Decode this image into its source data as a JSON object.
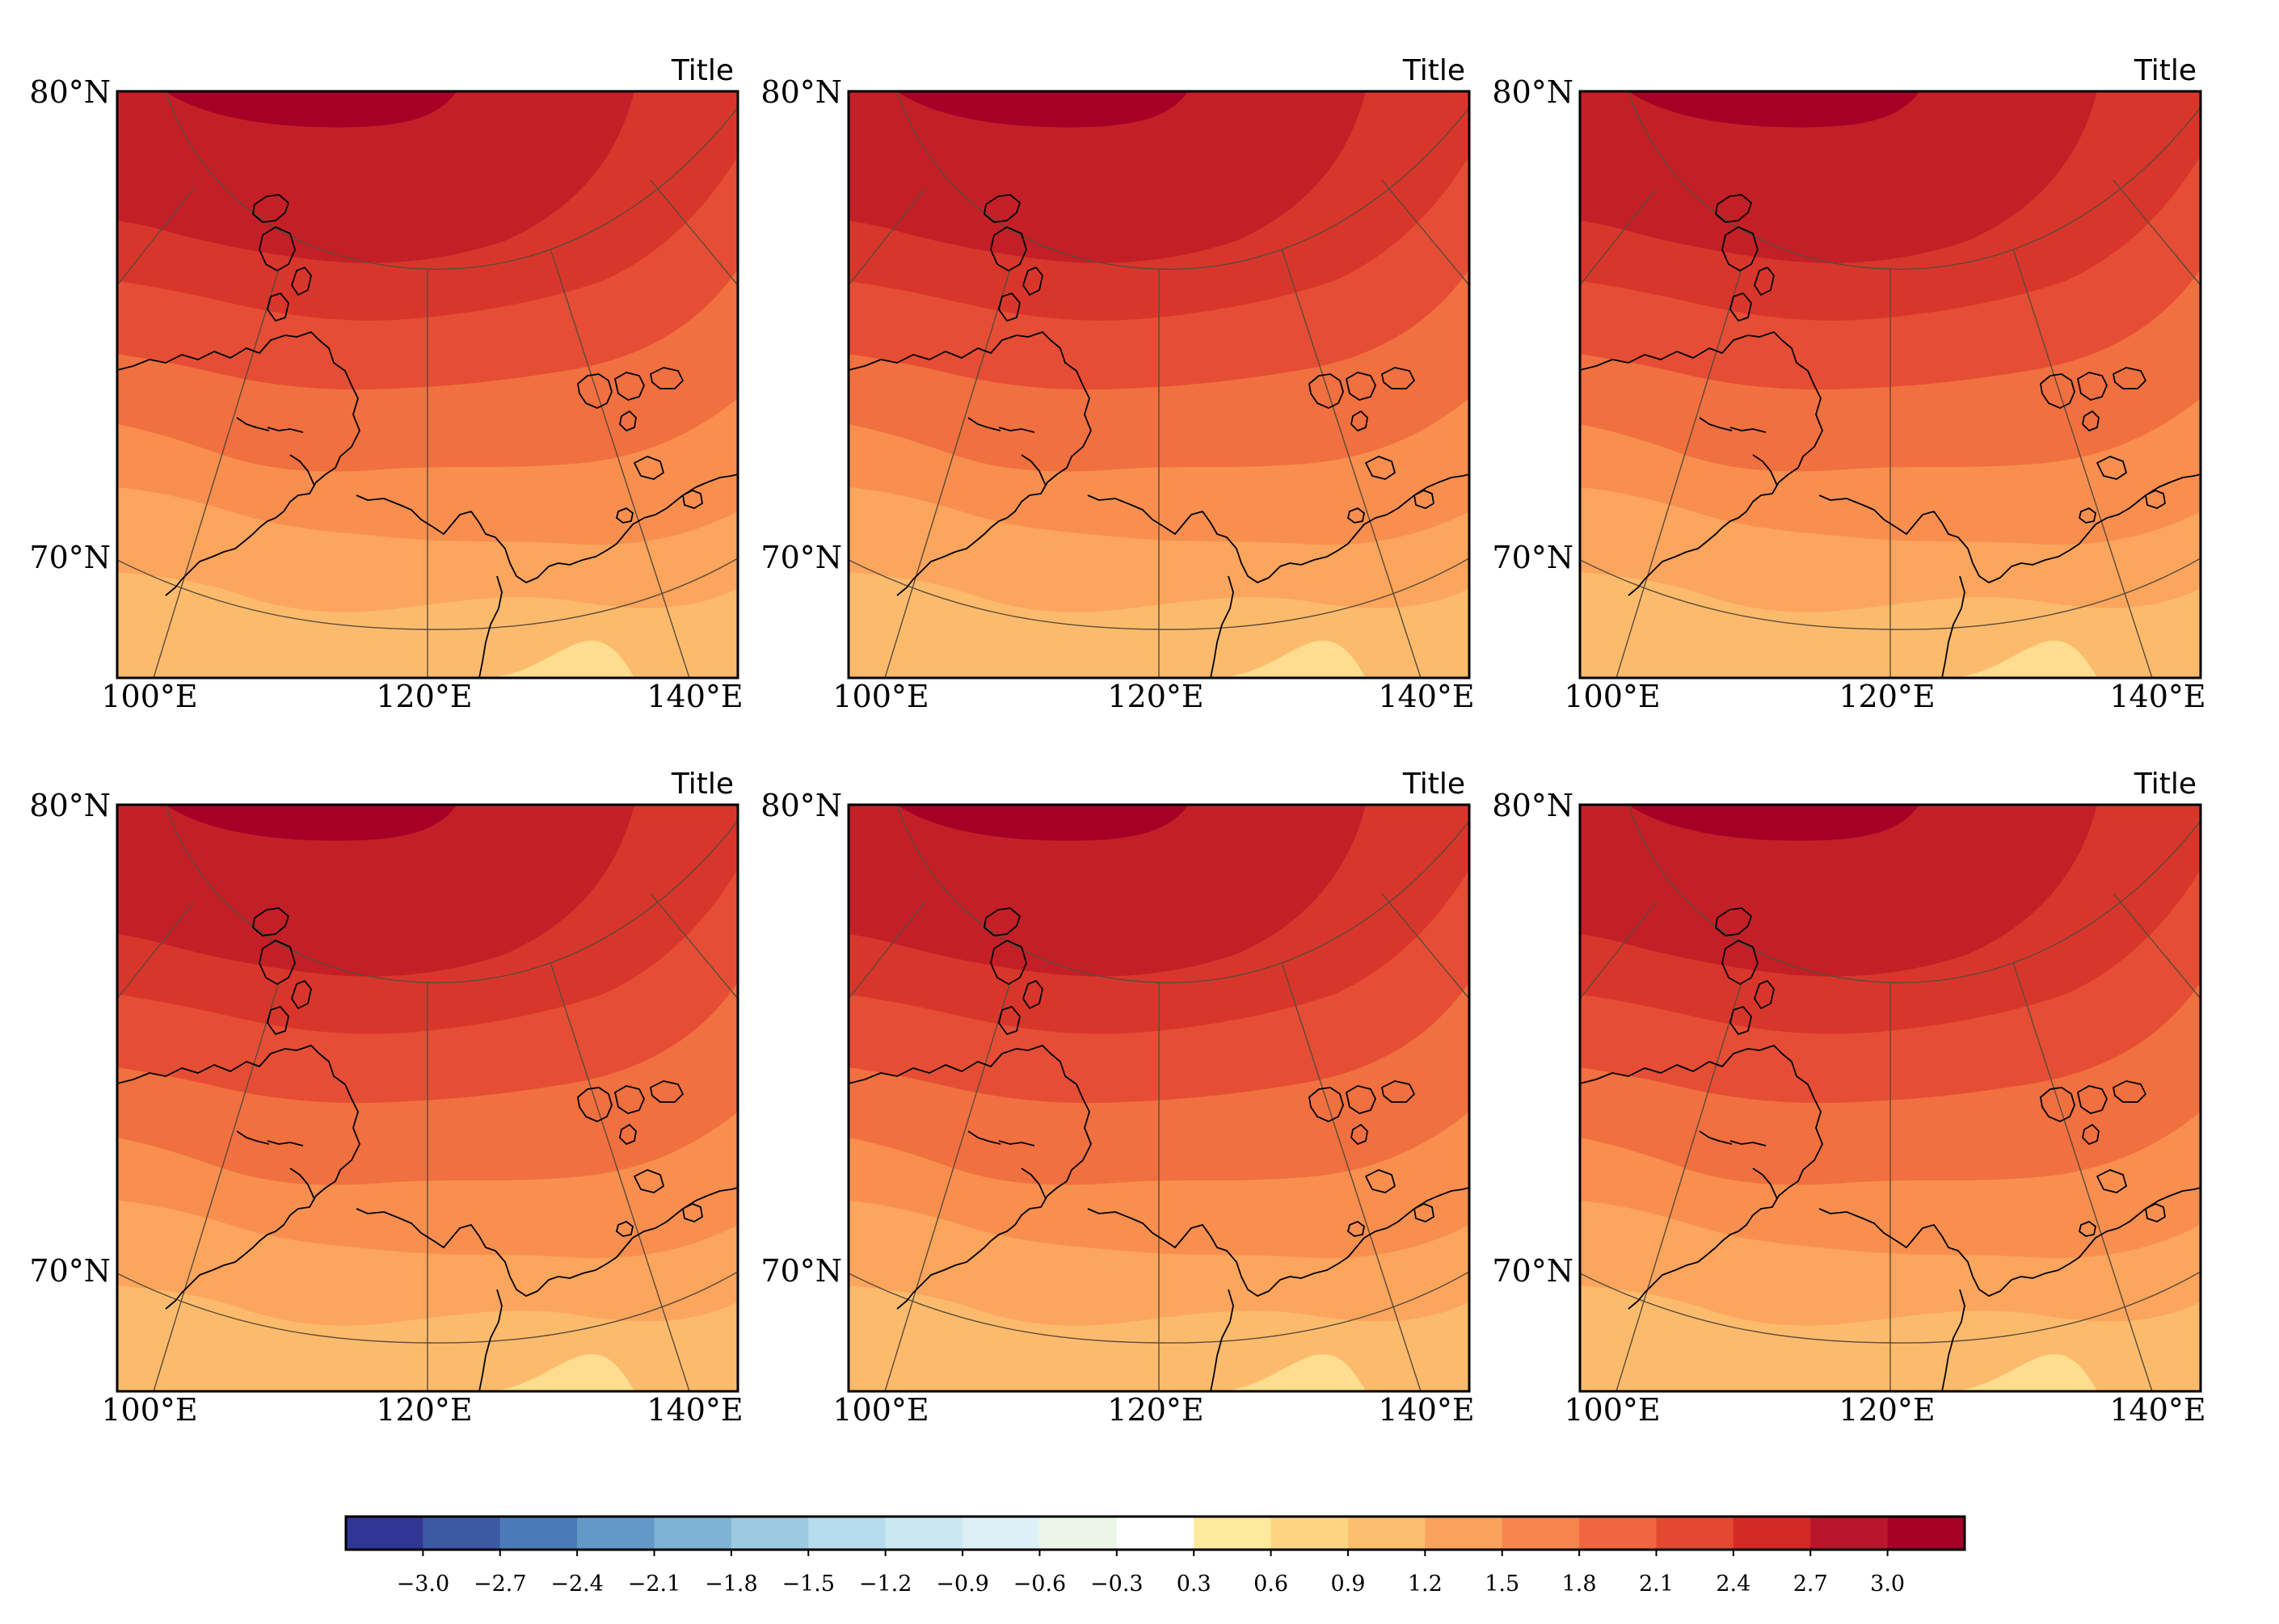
{
  "panels": [
    {
      "title": "Title"
    },
    {
      "title": "Title"
    },
    {
      "title": "Title"
    },
    {
      "title": "Title"
    },
    {
      "title": "Title"
    },
    {
      "title": "Title"
    }
  ],
  "lat_labels": [
    "80°N",
    "70°N"
  ],
  "lon_labels": [
    "100°E",
    "120°E",
    "140°E"
  ],
  "colorbar": {
    "ticks": [
      "−3.0",
      "−2.7",
      "−2.4",
      "−2.1",
      "−1.8",
      "−1.5",
      "−1.2",
      "−0.9",
      "−0.6",
      "−0.3",
      "0.3",
      "0.6",
      "0.9",
      "1.2",
      "1.5",
      "1.8",
      "2.1",
      "2.4",
      "2.7",
      "3.0"
    ],
    "colors": [
      "#313695",
      "#3c59a6",
      "#4a7ab7",
      "#6399c6",
      "#7fb3d5",
      "#9ccae1",
      "#b5dded",
      "#cbe8f2",
      "#ddf0f6",
      "#ebf6e9",
      "#ffffff",
      "#fee99d",
      "#fdd582",
      "#fcbf6e",
      "#fba35d",
      "#f7854e",
      "#f1663f",
      "#e34931",
      "#d22b26",
      "#b8172b",
      "#a50026"
    ]
  },
  "field_colors": {
    "c3_0": "#a50026",
    "c2_7": "#c41f27",
    "c2_4": "#d9362b",
    "c2_1": "#e54e35",
    "c1_8": "#f1703f",
    "c1_5": "#f88f4f",
    "c1_2": "#fba55d",
    "c0_9": "#fcbb6c",
    "c0_6": "#fddd8f"
  },
  "coastline_color": "#000000",
  "graticule_color": "#5a4a3a"
}
